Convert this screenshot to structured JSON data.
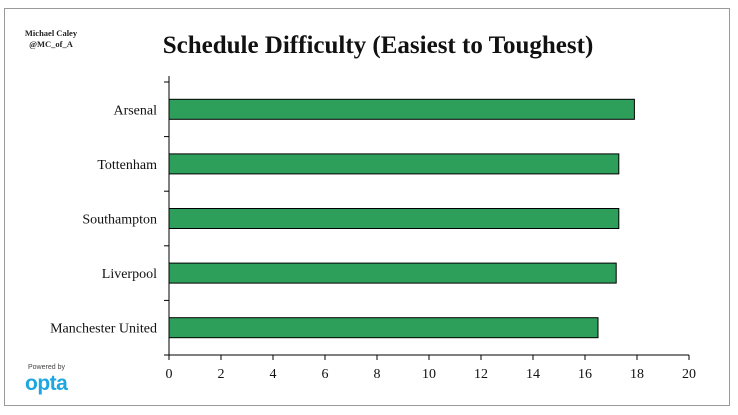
{
  "credit": {
    "line1": "Michael Caley",
    "line2": "@MC_of_A"
  },
  "powered_by": "Powered by",
  "brand": "opta",
  "colors": {
    "bar_fill": "#2e9e5b",
    "bar_stroke": "#000000",
    "brand": "#1da7e0"
  },
  "chart_data": {
    "type": "bar",
    "orientation": "horizontal",
    "title": "Schedule Difficulty (Easiest to Toughest)",
    "categories": [
      "Arsenal",
      "Tottenham",
      "Southampton",
      "Liverpool",
      "Manchester United"
    ],
    "values": [
      17.9,
      17.3,
      17.3,
      17.2,
      16.5
    ],
    "xlim": [
      0,
      20
    ],
    "xticks": [
      0,
      2,
      4,
      6,
      8,
      10,
      12,
      14,
      16,
      18,
      20
    ],
    "xlabel": "",
    "ylabel": "",
    "grid": false,
    "legend": "none"
  }
}
